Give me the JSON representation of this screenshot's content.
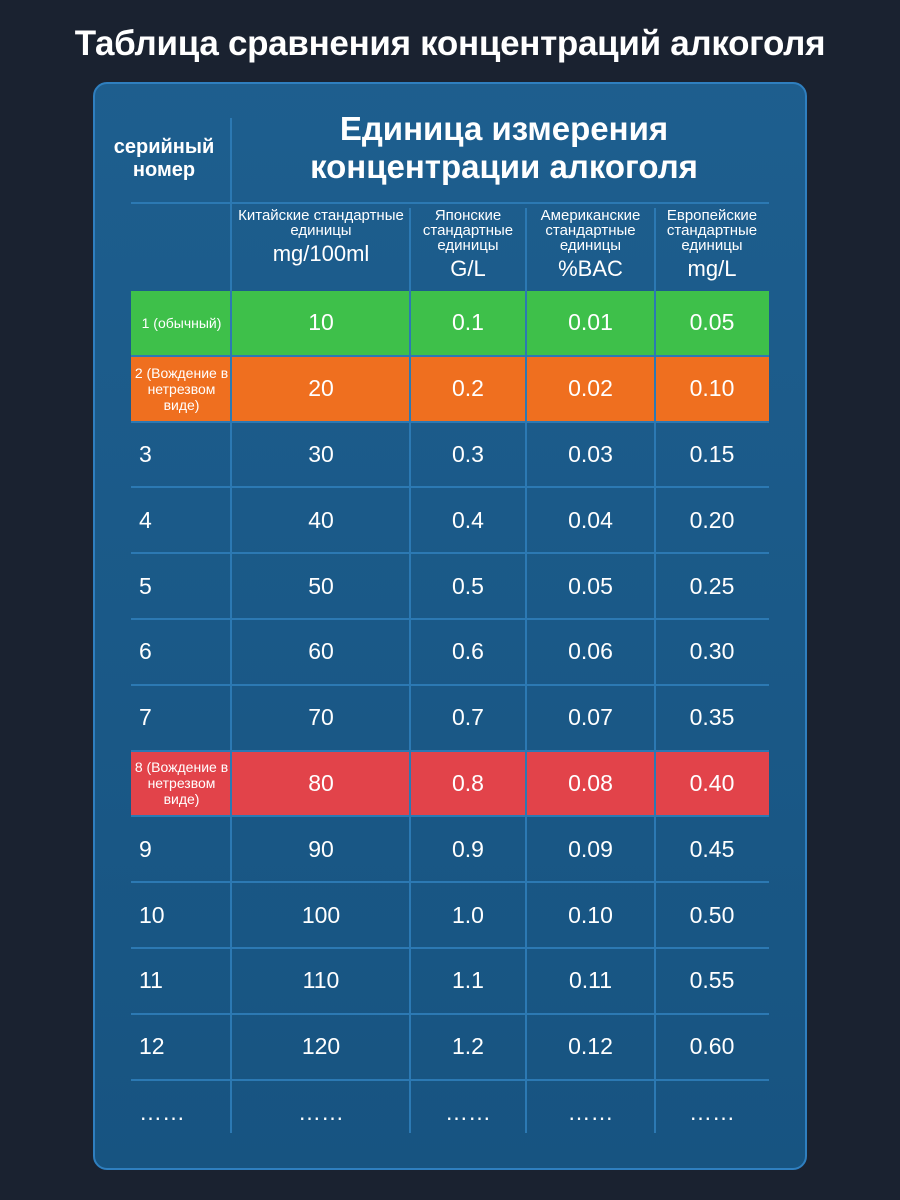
{
  "title": "Таблица сравнения концентраций алкоголя",
  "table": {
    "serial_header": "серийный номер",
    "unit_header": "Единица измерения концентрации алкоголя",
    "columns": [
      {
        "label": "Китайские стандартные единицы",
        "unit": "mg/100ml"
      },
      {
        "label": "Японские стандартные единицы",
        "unit": "G/L"
      },
      {
        "label": "Американские стандартные единицы",
        "unit": "%BAC"
      },
      {
        "label": "Европейские стандартные единицы",
        "unit": "mg/L"
      }
    ],
    "rows": [
      {
        "serial": "1 (обычный)",
        "values": [
          "10",
          "0.1",
          "0.01",
          "0.05"
        ],
        "highlight": "green"
      },
      {
        "serial": "2 (Вождение в нетрезвом виде)",
        "values": [
          "20",
          "0.2",
          "0.02",
          "0.10"
        ],
        "highlight": "orange"
      },
      {
        "serial": "3",
        "values": [
          "30",
          "0.3",
          "0.03",
          "0.15"
        ],
        "highlight": ""
      },
      {
        "serial": "4",
        "values": [
          "40",
          "0.4",
          "0.04",
          "0.20"
        ],
        "highlight": ""
      },
      {
        "serial": "5",
        "values": [
          "50",
          "0.5",
          "0.05",
          "0.25"
        ],
        "highlight": ""
      },
      {
        "serial": "6",
        "values": [
          "60",
          "0.6",
          "0.06",
          "0.30"
        ],
        "highlight": ""
      },
      {
        "serial": "7",
        "values": [
          "70",
          "0.7",
          "0.07",
          "0.35"
        ],
        "highlight": ""
      },
      {
        "serial": "8 (Вождение в нетрезвом виде)",
        "values": [
          "80",
          "0.8",
          "0.08",
          "0.40"
        ],
        "highlight": "red"
      },
      {
        "serial": "9",
        "values": [
          "90",
          "0.9",
          "0.09",
          "0.45"
        ],
        "highlight": ""
      },
      {
        "serial": "10",
        "values": [
          "100",
          "1.0",
          "0.10",
          "0.50"
        ],
        "highlight": ""
      },
      {
        "serial": "11",
        "values": [
          "110",
          "1.1",
          "0.11",
          "0.55"
        ],
        "highlight": ""
      },
      {
        "serial": "12",
        "values": [
          "120",
          "1.2",
          "0.12",
          "0.60"
        ],
        "highlight": ""
      },
      {
        "serial": "……",
        "values": [
          "……",
          "……",
          "……",
          "……"
        ],
        "highlight": ""
      }
    ]
  },
  "colors": {
    "background": "#1a2230",
    "panel": "#195b8c",
    "grid": "#2c79b3",
    "green": "#3ec04a",
    "orange": "#ef6f1f",
    "red": "#e2434a"
  }
}
